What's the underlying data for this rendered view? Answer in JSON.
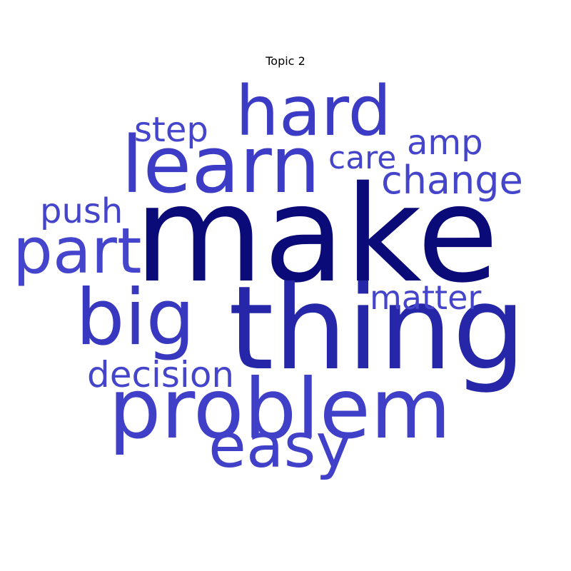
{
  "title": "Topic 2",
  "words": [
    {
      "key": "make",
      "text": "make",
      "color": "#0a0a78"
    },
    {
      "key": "thing",
      "text": "thing",
      "color": "#2626a8"
    },
    {
      "key": "problem",
      "text": "problem",
      "color": "#3f3fc8"
    },
    {
      "key": "learn",
      "text": "learn",
      "color": "#3c3cc6"
    },
    {
      "key": "hard",
      "text": "hard",
      "color": "#3b3bc5"
    },
    {
      "key": "big",
      "text": "big",
      "color": "#3737c0"
    },
    {
      "key": "part",
      "text": "part",
      "color": "#4444cc"
    },
    {
      "key": "easy",
      "text": "easy",
      "color": "#4040c9"
    },
    {
      "key": "change",
      "text": "change",
      "color": "#4545cc"
    },
    {
      "key": "decision",
      "text": "decision",
      "color": "#4545cc"
    },
    {
      "key": "matter",
      "text": "matter",
      "color": "#4545cc"
    },
    {
      "key": "amp",
      "text": "amp",
      "color": "#4545cc"
    },
    {
      "key": "step",
      "text": "step",
      "color": "#4545cc"
    },
    {
      "key": "push",
      "text": "push",
      "color": "#4545cc"
    },
    {
      "key": "care",
      "text": "care",
      "color": "#4545cc"
    }
  ]
}
